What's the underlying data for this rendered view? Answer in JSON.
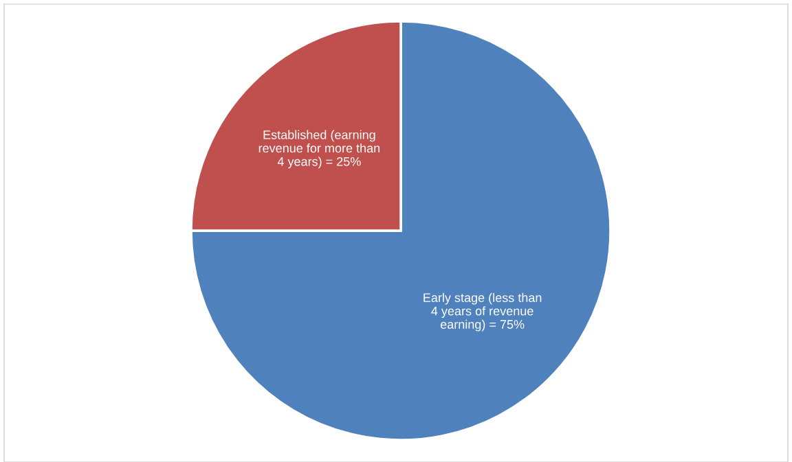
{
  "chart_data": {
    "type": "pie",
    "categories": [
      "Early stage (less than\n4 years of revenue\nearning) = 75%",
      "Established (earning\nrevenue for more than\n4 years) = 25%"
    ],
    "values": [
      75,
      25
    ],
    "colors": [
      "#4f81bd",
      "#c0504d"
    ],
    "legend": false
  }
}
